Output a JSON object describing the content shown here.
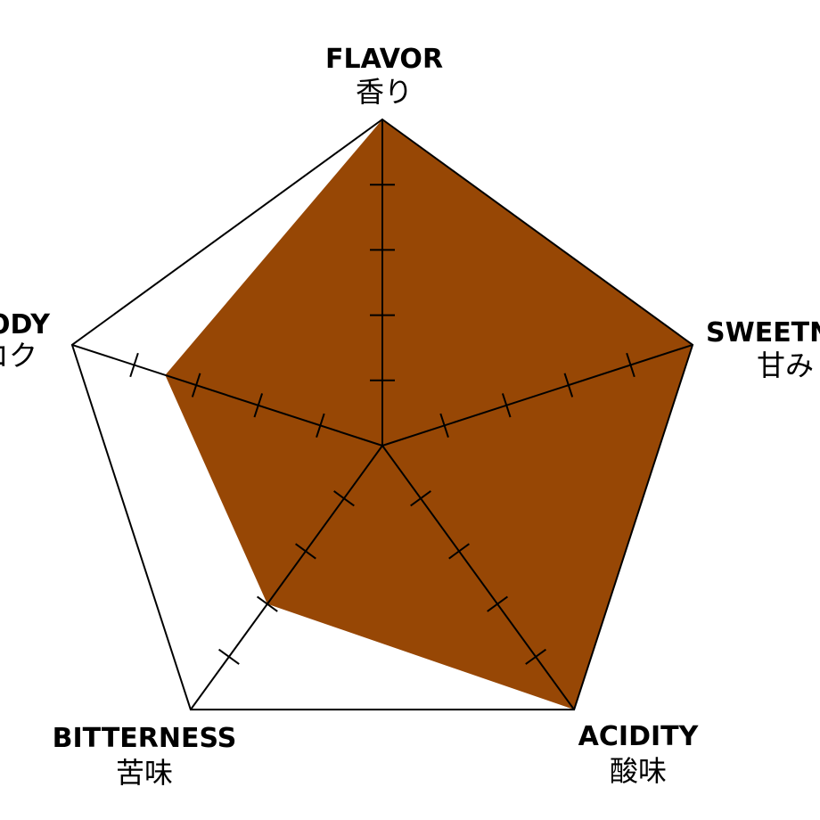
{
  "chart_data": {
    "type": "radar",
    "title": "",
    "scale": {
      "min": 0,
      "max": 5,
      "ticks": 5
    },
    "axes": [
      {
        "en": "FLAVOR",
        "jp": "香り"
      },
      {
        "en": "SWEETNESS",
        "jp": "甘み"
      },
      {
        "en": "ACIDITY",
        "jp": "酸味"
      },
      {
        "en": "BITTERNESS",
        "jp": "苦味"
      },
      {
        "en": "BODY",
        "jp": "コク"
      }
    ],
    "series": [
      {
        "values": [
          5,
          5,
          5,
          3,
          3.5
        ],
        "color": "#974705"
      }
    ],
    "grid": {
      "outline": true,
      "spokes": true,
      "tick_marks": true
    }
  }
}
